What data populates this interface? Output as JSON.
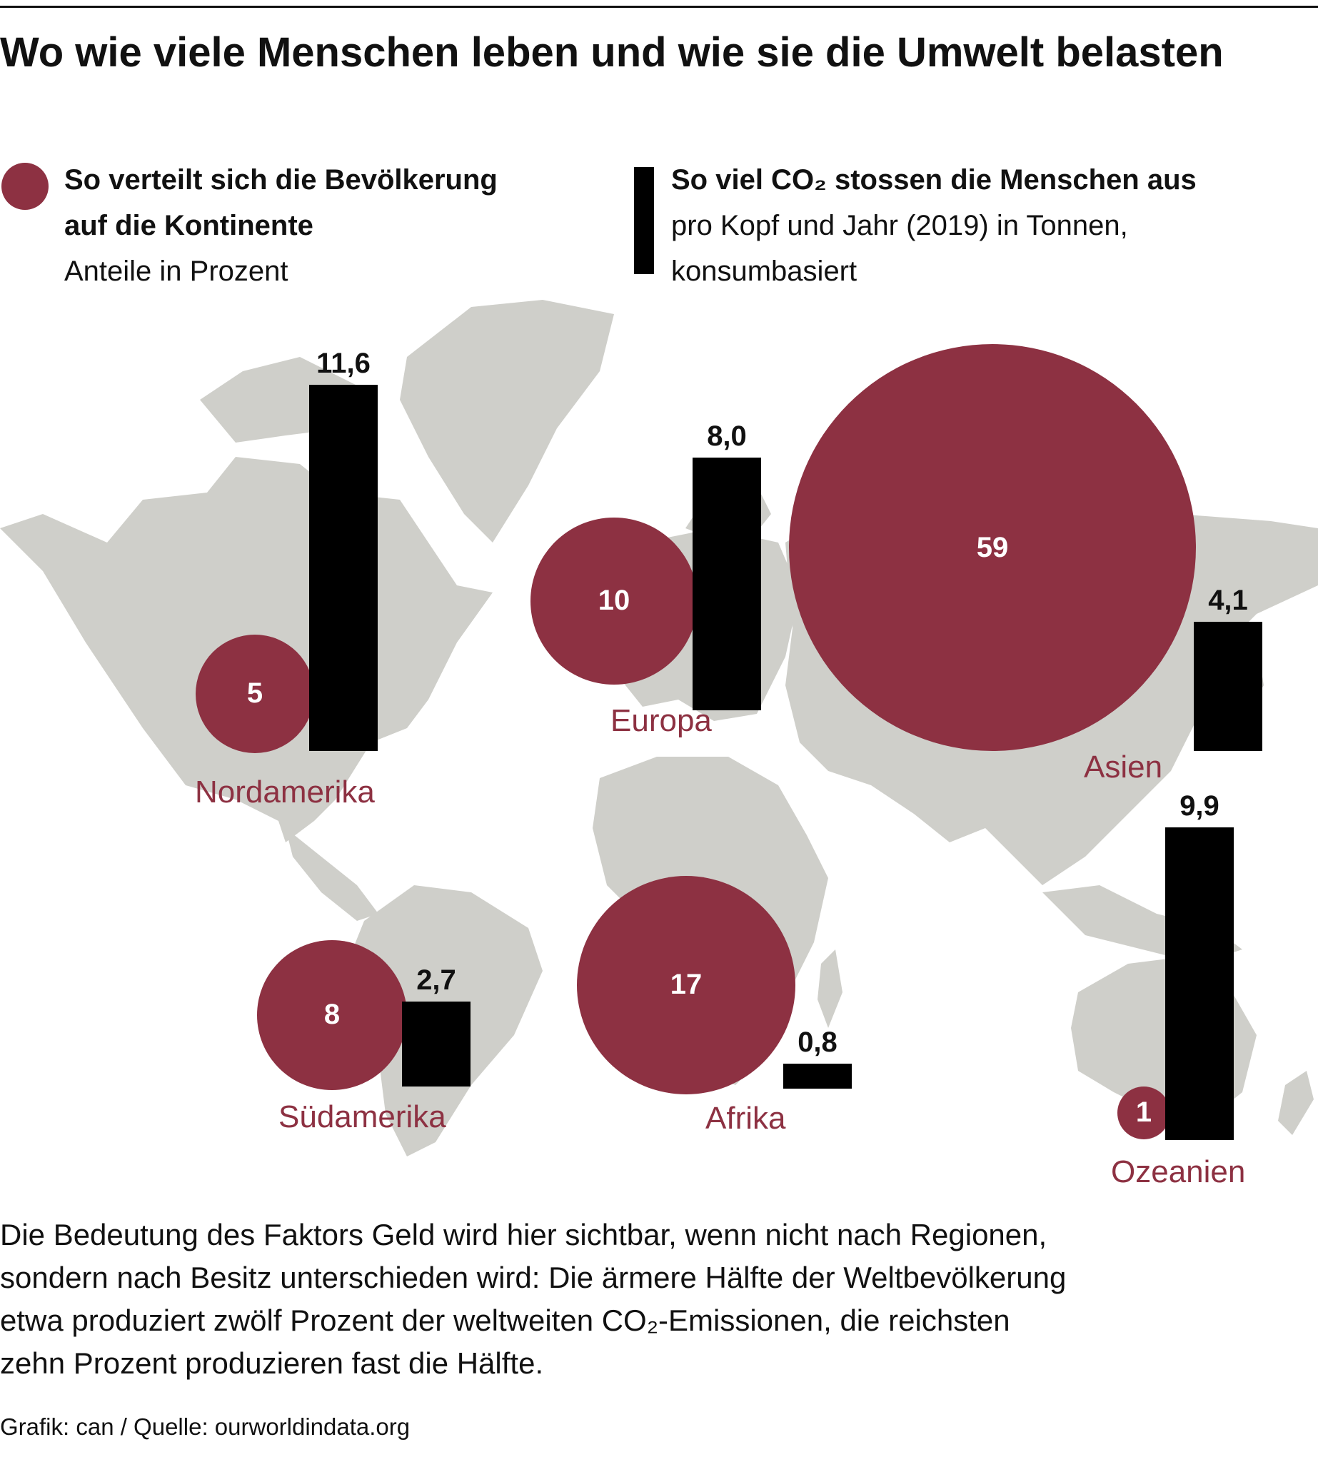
{
  "title": "Wo wie viele Menschen leben und wie sie die Umwelt belasten",
  "legend_population": {
    "heading_line1": "So verteilt sich die Bevölkerung",
    "heading_line2": "auf die Kontinente",
    "subtitle": "Anteile in Prozent",
    "color": "#8d3142"
  },
  "legend_co2": {
    "heading": "So viel CO₂ stossen die Menschen aus",
    "subtitle_line1": "pro Kopf und Jahr (2019) in Tonnen,",
    "subtitle_line2": "konsumbasiert",
    "color": "#000000"
  },
  "chart_data": {
    "type": "bubble-bar-map",
    "regions": [
      {
        "name": "Nordamerika",
        "population_share": 5,
        "population_label": "5",
        "co2_per_capita": 11.6,
        "co2_label": "11,6"
      },
      {
        "name": "Europa",
        "population_share": 10,
        "population_label": "10",
        "co2_per_capita": 8.0,
        "co2_label": "8,0"
      },
      {
        "name": "Asien",
        "population_share": 59,
        "population_label": "59",
        "co2_per_capita": 4.1,
        "co2_label": "4,1"
      },
      {
        "name": "Südamerika",
        "population_share": 8,
        "population_label": "8",
        "co2_per_capita": 2.7,
        "co2_label": "2,7"
      },
      {
        "name": "Afrika",
        "population_share": 17,
        "population_label": "17",
        "co2_per_capita": 0.8,
        "co2_label": "0,8"
      },
      {
        "name": "Ozeanien",
        "population_share": 1,
        "population_label": "1",
        "co2_per_capita": 9.9,
        "co2_label": "9,9"
      }
    ],
    "colors": {
      "bubble": "#8d3142",
      "bar": "#000000",
      "map": "#cfcfca",
      "region_label": "#8d3142"
    }
  },
  "footnote": {
    "line1": "Die Bedeutung des Faktors Geld wird hier sichtbar, wenn nicht nach Regionen,",
    "line2": "sondern nach Besitz unterschieden wird: Die ärmere Hälfte der Weltbevölkerung",
    "line3": "etwa produziert zwölf Prozent der weltweiten CO₂-Emissionen, die reichsten",
    "line4": "zehn Prozent produzieren fast die Hälfte."
  },
  "source": "Grafik: can / Quelle: ourworldindata.org"
}
